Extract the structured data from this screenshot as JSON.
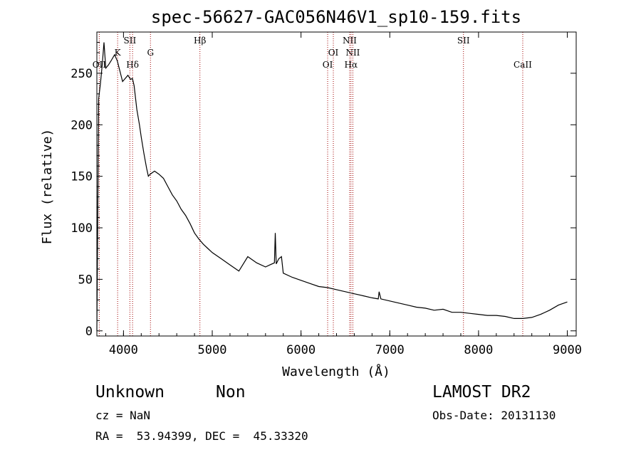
{
  "chart_data": {
    "type": "line",
    "title": "spec-56627-GAC056N46V1_sp10-159.fits",
    "xlabel": "Wavelength (Å)",
    "ylabel": "Flux (relative)",
    "xlim": [
      3700,
      9100
    ],
    "ylim": [
      -5,
      290
    ],
    "xticks": [
      "4000",
      "5000",
      "6000",
      "7000",
      "8000",
      "9000"
    ],
    "yticks": [
      "0",
      "50",
      "100",
      "150",
      "200",
      "250"
    ],
    "grid": false,
    "series": [
      {
        "x": [
          3700,
          3720,
          3740,
          3760,
          3780,
          3800,
          3830,
          3860,
          3900,
          3930,
          3960,
          3990,
          4020,
          4050,
          4080,
          4100,
          4120,
          4150,
          4180,
          4200,
          4230,
          4260,
          4280,
          4300,
          4350,
          4400,
          4450,
          4500,
          4550,
          4600,
          4650,
          4700,
          4750,
          4800,
          4850,
          4900,
          4950,
          5000,
          5100,
          5200,
          5300,
          5400,
          5500,
          5600,
          5650,
          5700,
          5710,
          5720,
          5750,
          5780,
          5800,
          5900,
          6000,
          6100,
          6200,
          6300,
          6400,
          6500,
          6600,
          6700,
          6800,
          6870,
          6880,
          6900,
          7000,
          7100,
          7200,
          7300,
          7400,
          7500,
          7600,
          7700,
          7800,
          7900,
          8000,
          8100,
          8200,
          8300,
          8400,
          8500,
          8600,
          8700,
          8800,
          8900,
          9000
        ],
        "y": [
          0,
          225,
          240,
          258,
          280,
          255,
          258,
          262,
          268,
          262,
          252,
          242,
          245,
          248,
          244,
          245,
          238,
          215,
          200,
          188,
          172,
          158,
          150,
          152,
          155,
          152,
          148,
          140,
          132,
          126,
          118,
          112,
          104,
          95,
          89,
          84,
          80,
          76,
          70,
          64,
          58,
          72,
          66,
          62,
          64,
          66,
          95,
          65,
          70,
          72,
          56,
          52,
          49,
          46,
          43,
          42,
          40,
          38,
          36,
          34,
          32,
          31,
          38,
          31,
          29,
          27,
          25,
          23,
          22,
          20,
          21,
          18,
          18,
          17,
          16,
          15,
          15,
          14,
          12,
          12,
          13,
          16,
          20,
          25,
          28
        ]
      }
    ],
    "lines": [
      {
        "name": "OII",
        "wavelength": 3727,
        "label_row": 2
      },
      {
        "name": "K",
        "wavelength": 3934,
        "label_row": 1
      },
      {
        "name": "Hδ",
        "wavelength": 4102,
        "label_row": 2
      },
      {
        "name": "SII",
        "wavelength": 4072,
        "label_row": 0
      },
      {
        "name": "G",
        "wavelength": 4304,
        "label_row": 1
      },
      {
        "name": "Hβ",
        "wavelength": 4861,
        "label_row": 0
      },
      {
        "name": "OI",
        "wavelength": 6300,
        "label_row": 2
      },
      {
        "name": "OI",
        "wavelength": 6364,
        "label_row": 1
      },
      {
        "name": "NII",
        "wavelength": 6548,
        "label_row": 0
      },
      {
        "name": "NII",
        "wavelength": 6584,
        "label_row": 1
      },
      {
        "name": "Hα",
        "wavelength": 6563,
        "label_row": 2
      },
      {
        "name": "SII",
        "wavelength": 7830,
        "label_row": 0
      },
      {
        "name": "CaII",
        "wavelength": 8498,
        "label_row": 2
      }
    ]
  },
  "info": {
    "class": "Unknown",
    "subclass": "Non",
    "survey": "LAMOST DR2",
    "cz": "cz = NaN",
    "obs_date": "Obs-Date: 20131130",
    "radec": "RA =  53.94399, DEC =  45.33320"
  }
}
